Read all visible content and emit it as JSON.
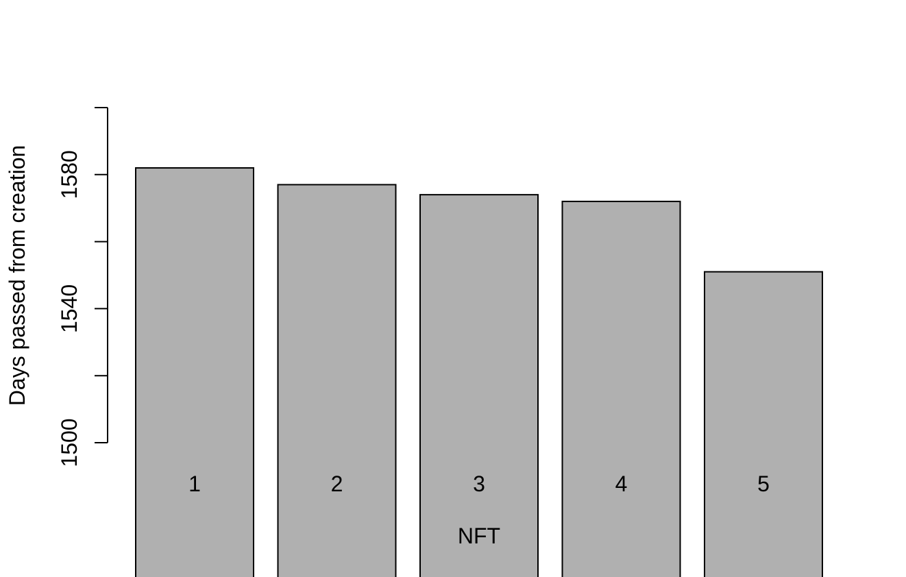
{
  "chart_data": {
    "type": "bar",
    "categories": [
      "1",
      "2",
      "3",
      "4",
      "5"
    ],
    "values": [
      1582,
      1577,
      1574,
      1572,
      1551
    ],
    "title": "",
    "xlabel": "NFT",
    "ylabel": "Days passed from creation",
    "ylim": [
      1500,
      1600
    ],
    "y_ticks": [
      1500,
      1520,
      1540,
      1560,
      1580,
      1600
    ],
    "y_tick_labels": [
      "1500",
      "",
      "1540",
      "",
      "1580",
      ""
    ],
    "grid": false,
    "legend": "none",
    "colors": {
      "bar_fill": "#b0b0b0",
      "bar_stroke": "#000000",
      "axis": "#000000"
    }
  }
}
